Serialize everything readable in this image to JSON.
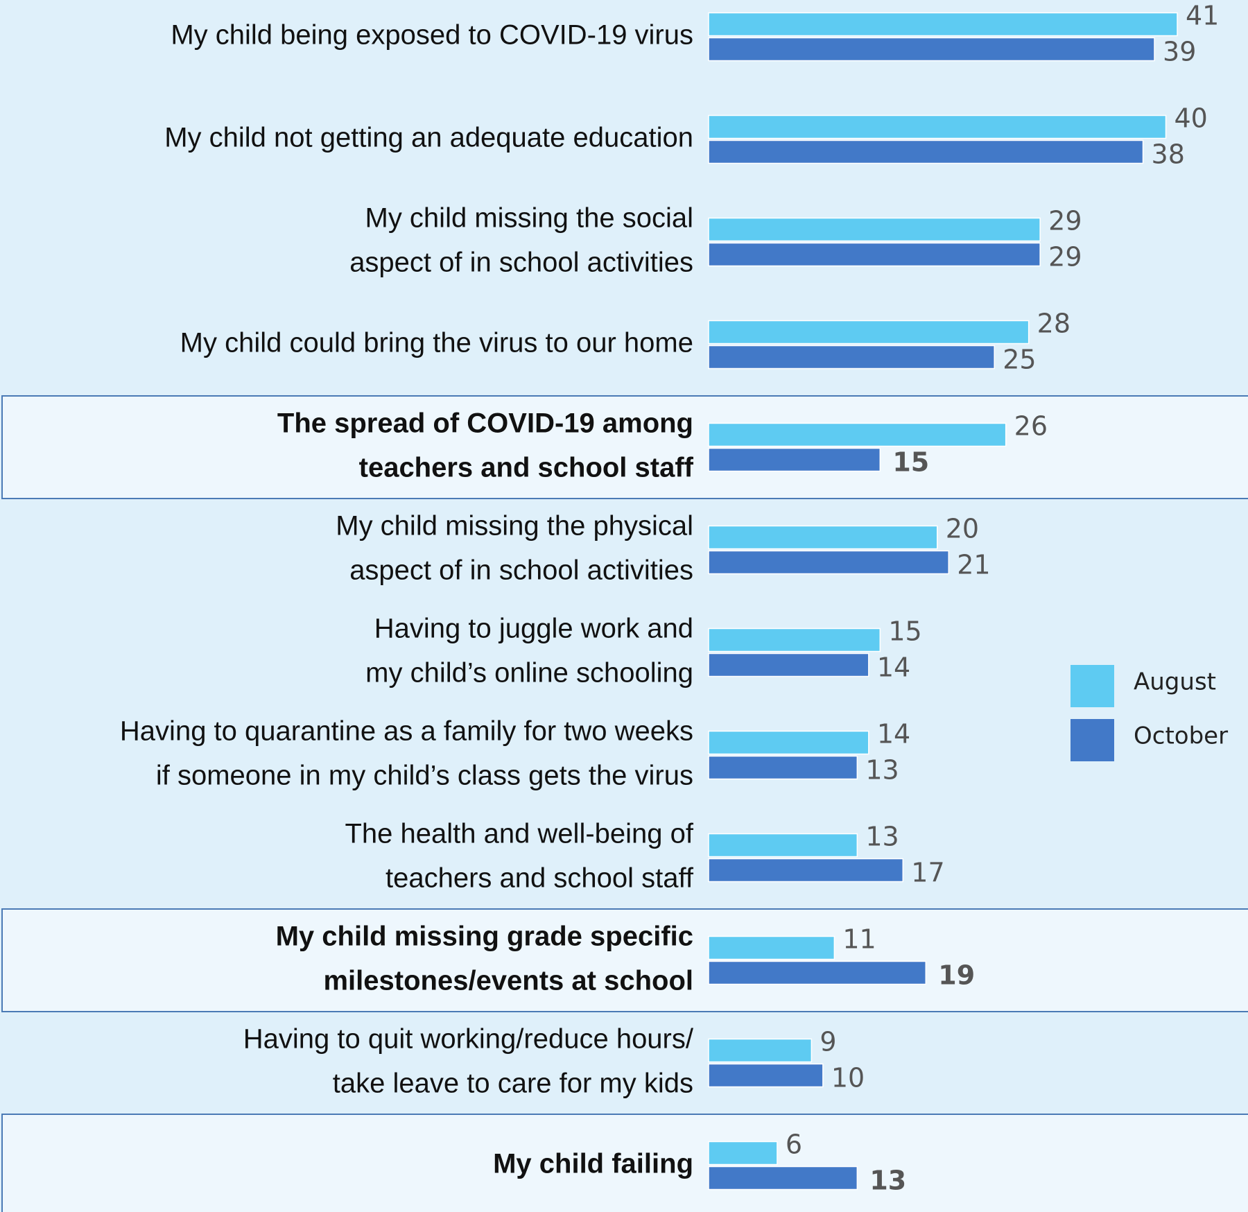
{
  "chart_data": {
    "type": "grouped-hbar",
    "categories": [
      [
        "My child being exposed to COVID-19 virus"
      ],
      [
        "My child not getting an adequate education"
      ],
      [
        "My child missing the social",
        "aspect of in school activities"
      ],
      [
        "My child could bring the virus to our home"
      ],
      [
        "The spread of COVID-19 among",
        "teachers and school staff"
      ],
      [
        "My child missing the physical",
        "aspect of in school activities"
      ],
      [
        "Having to juggle work and",
        "my child’s online schooling"
      ],
      [
        "Having to quarantine as a family for two weeks",
        "if someone in my child’s class gets the virus"
      ],
      [
        "The health and well-being of",
        "teachers and school staff"
      ],
      [
        "My child missing grade specific",
        "milestones/events at school"
      ],
      [
        "Having to quit working/reduce hours/",
        "take leave to care for my kids"
      ],
      [
        "My child failing"
      ]
    ],
    "series": [
      {
        "name": "August",
        "color": "#5ecbf2",
        "values": [
          41,
          40,
          29,
          28,
          26,
          20,
          15,
          14,
          13,
          11,
          9,
          6
        ]
      },
      {
        "name": "October",
        "color": "#4279c8",
        "values": [
          39,
          38,
          29,
          25,
          15,
          21,
          14,
          13,
          17,
          19,
          10,
          13
        ]
      }
    ],
    "highlight": [
      4,
      9,
      11
    ],
    "legend": "right"
  }
}
